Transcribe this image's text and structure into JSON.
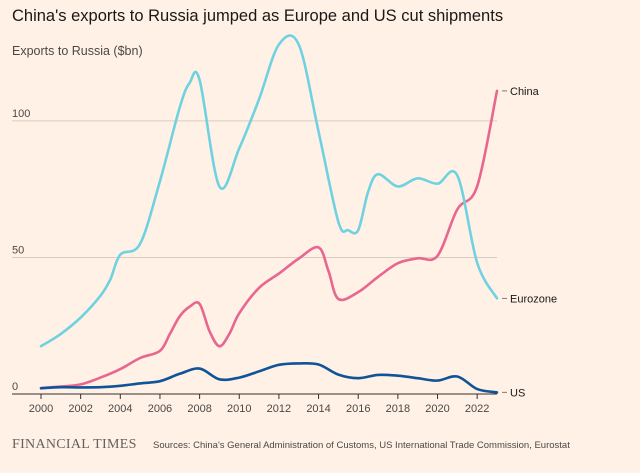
{
  "chart_data": {
    "type": "line",
    "title": "China's exports to Russia jumped as Europe and US cut shipments",
    "ylabel": "Exports to Russia ($bn)",
    "xlabel": "",
    "xlim": [
      2000,
      2023
    ],
    "ylim": [
      0,
      130
    ],
    "x_ticks": [
      2000,
      2002,
      2004,
      2006,
      2008,
      2010,
      2012,
      2014,
      2016,
      2018,
      2020,
      2022
    ],
    "y_ticks": [
      0,
      50,
      100
    ],
    "grid": "horizontal",
    "series": [
      {
        "name": "China",
        "color": "#e8668f",
        "points": [
          [
            2000,
            2.2
          ],
          [
            2001,
            2.7
          ],
          [
            2002,
            3.5
          ],
          [
            2003,
            6
          ],
          [
            2004,
            9.1
          ],
          [
            2005,
            13.2
          ],
          [
            2006,
            15.8
          ],
          [
            2006.5,
            22
          ],
          [
            2007,
            28.5
          ],
          [
            2007.5,
            32
          ],
          [
            2008,
            33
          ],
          [
            2008.5,
            23
          ],
          [
            2009,
            17.5
          ],
          [
            2009.5,
            22
          ],
          [
            2010,
            29.6
          ],
          [
            2011,
            38.9
          ],
          [
            2012,
            44.1
          ],
          [
            2013,
            49.6
          ],
          [
            2014,
            53.7
          ],
          [
            2014.5,
            45
          ],
          [
            2015,
            34.8
          ],
          [
            2016,
            37.3
          ],
          [
            2017,
            42.9
          ],
          [
            2018,
            47.9
          ],
          [
            2019,
            49.7
          ],
          [
            2020,
            50.6
          ],
          [
            2021,
            67.6
          ],
          [
            2022,
            76.1
          ],
          [
            2023,
            111
          ]
        ]
      },
      {
        "name": "Eurozone",
        "color": "#70d2e0",
        "points": [
          [
            2000,
            17.5
          ],
          [
            2001,
            22
          ],
          [
            2002,
            28
          ],
          [
            2003,
            36
          ],
          [
            2003.5,
            42
          ],
          [
            2004,
            51
          ],
          [
            2005,
            55
          ],
          [
            2006,
            78
          ],
          [
            2007,
            105
          ],
          [
            2007.5,
            114
          ],
          [
            2008,
            115
          ],
          [
            2009,
            76
          ],
          [
            2010,
            90
          ],
          [
            2011,
            108
          ],
          [
            2012,
            128
          ],
          [
            2013,
            128
          ],
          [
            2014,
            96
          ],
          [
            2015,
            63
          ],
          [
            2015.5,
            60
          ],
          [
            2016,
            60
          ],
          [
            2016.5,
            74
          ],
          [
            2017,
            80.5
          ],
          [
            2018,
            76
          ],
          [
            2019,
            79
          ],
          [
            2020,
            77
          ],
          [
            2021,
            80
          ],
          [
            2022,
            48
          ],
          [
            2023,
            35
          ]
        ]
      },
      {
        "name": "US",
        "color": "#0f5499",
        "points": [
          [
            2000,
            2.1
          ],
          [
            2001,
            2.5
          ],
          [
            2002,
            2.4
          ],
          [
            2003,
            2.5
          ],
          [
            2004,
            3
          ],
          [
            2005,
            3.9
          ],
          [
            2006,
            4.7
          ],
          [
            2007,
            7.4
          ],
          [
            2008,
            9.3
          ],
          [
            2009,
            5.4
          ],
          [
            2010,
            6
          ],
          [
            2011,
            8.3
          ],
          [
            2012,
            10.7
          ],
          [
            2013,
            11.2
          ],
          [
            2014,
            10.8
          ],
          [
            2015,
            7.1
          ],
          [
            2016,
            5.8
          ],
          [
            2017,
            7
          ],
          [
            2018,
            6.7
          ],
          [
            2019,
            5.8
          ],
          [
            2020,
            4.9
          ],
          [
            2021,
            6.4
          ],
          [
            2022,
            1.8
          ],
          [
            2023,
            0.6
          ]
        ]
      }
    ]
  },
  "footer": {
    "brand": "FINANCIAL TIMES",
    "source": "Sources: China's General Administration of Customs, US International Trade Commission, Eurostat"
  }
}
